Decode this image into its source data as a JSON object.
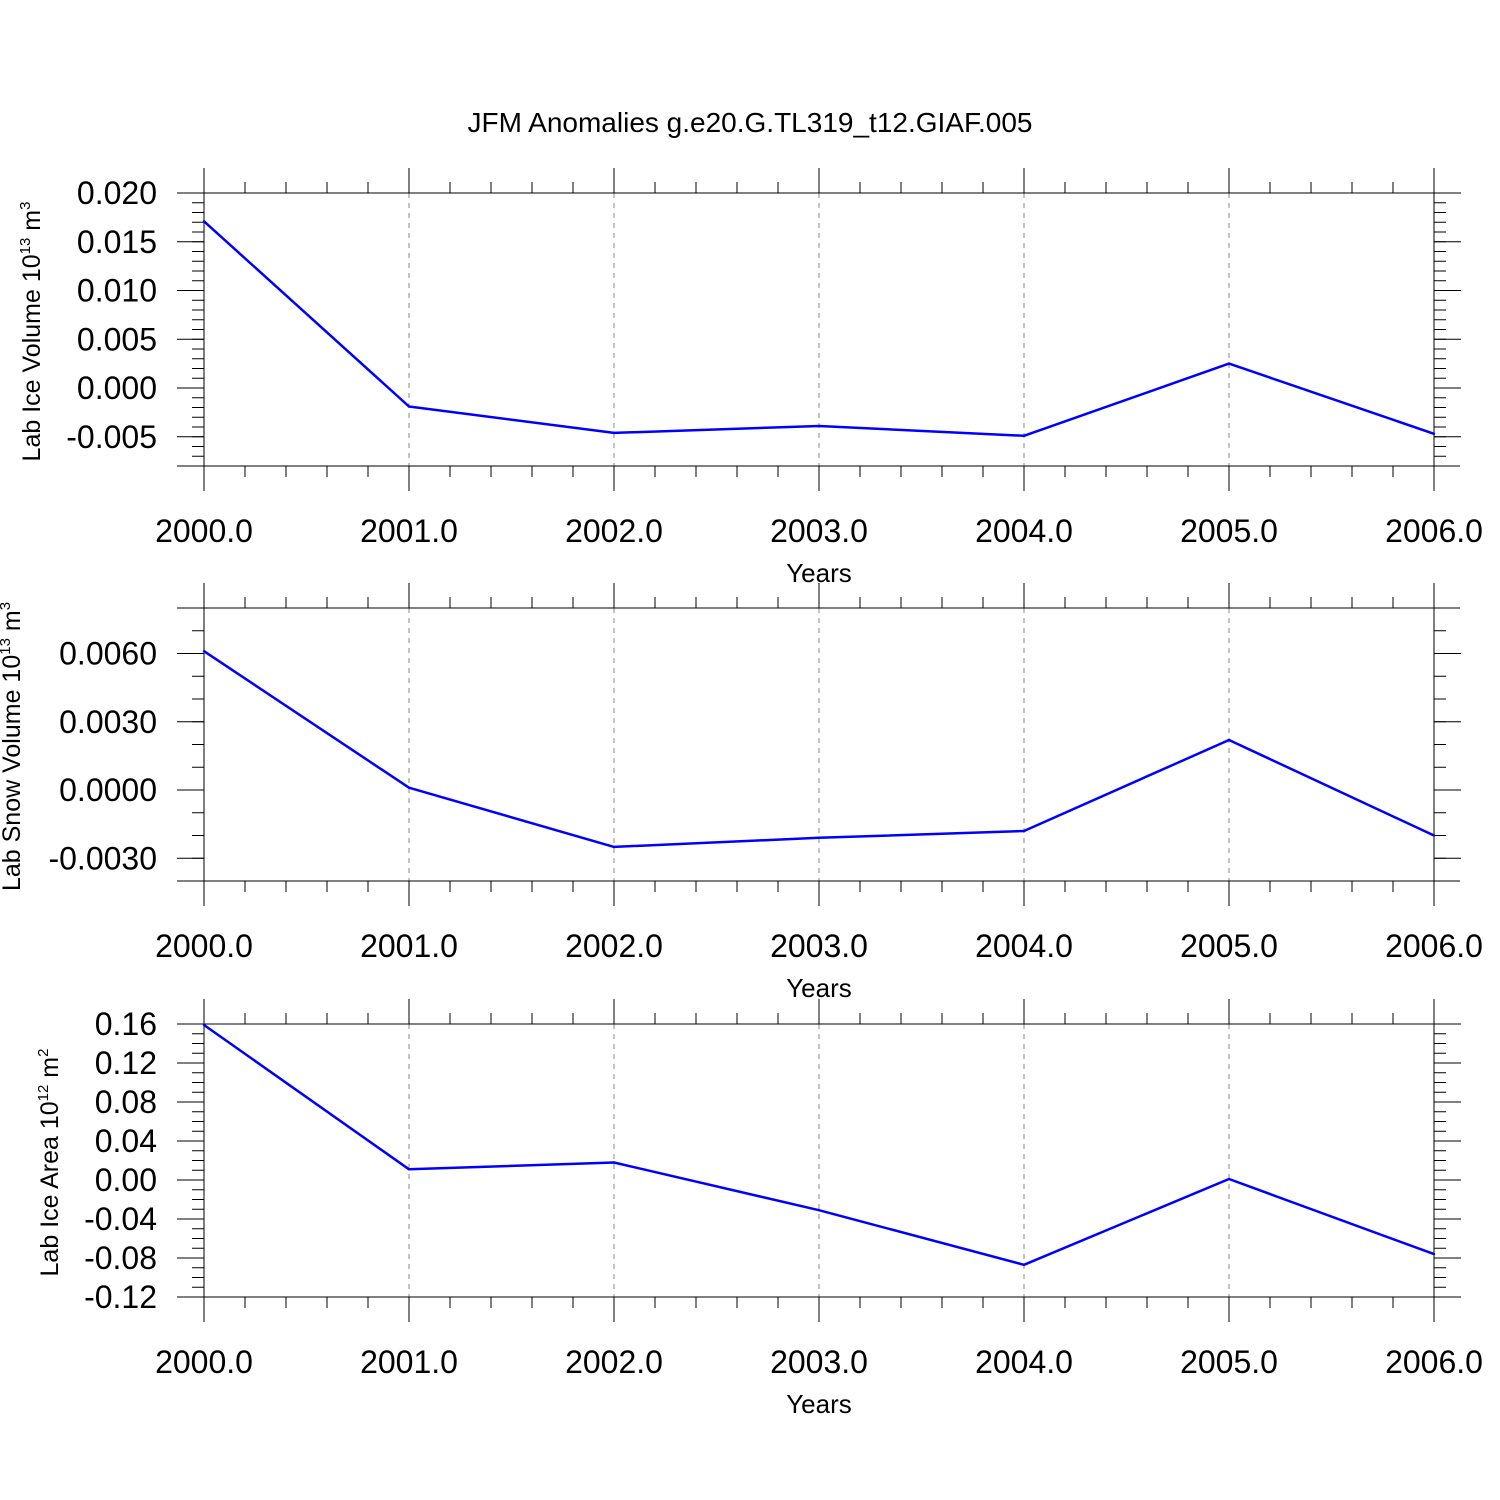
{
  "title": "JFM Anomalies g.e20.G.TL319_t12.GIAF.005",
  "line_color": "#0000ff",
  "chart_data": [
    {
      "type": "line",
      "xlabel": "Years",
      "ylabel": {
        "main": "Lab Ice Volume 10",
        "exp": "13",
        "unit": " m",
        "unit_exp": "3"
      },
      "x": [
        2000,
        2001,
        2002,
        2003,
        2004,
        2005,
        2006
      ],
      "xlim": [
        2000,
        2006
      ],
      "xticks": [
        "2000.0",
        "2001.0",
        "2002.0",
        "2003.0",
        "2004.0",
        "2005.0",
        "2006.0"
      ],
      "values": [
        0.0171,
        -0.0019,
        -0.0046,
        -0.0039,
        -0.0049,
        0.0025,
        -0.0047
      ],
      "ylim": [
        -0.008,
        0.02
      ],
      "yticks": [
        {
          "value": 0.02,
          "label": "0.020"
        },
        {
          "value": 0.015,
          "label": "0.015"
        },
        {
          "value": 0.01,
          "label": "0.010"
        },
        {
          "value": 0.005,
          "label": "0.005"
        },
        {
          "value": 0.0,
          "label": "0.000"
        },
        {
          "value": -0.005,
          "label": "-0.005"
        }
      ],
      "yminor_step": 0.001,
      "grid": "x-dashed"
    },
    {
      "type": "line",
      "xlabel": "Years",
      "ylabel": {
        "main": "Lab Snow Volume 10",
        "exp": "13",
        "unit": " m",
        "unit_exp": "3"
      },
      "x": [
        2000,
        2001,
        2002,
        2003,
        2004,
        2005,
        2006
      ],
      "xlim": [
        2000,
        2006
      ],
      "xticks": [
        "2000.0",
        "2001.0",
        "2002.0",
        "2003.0",
        "2004.0",
        "2005.0",
        "2006.0"
      ],
      "values": [
        0.0061,
        0.0001,
        -0.0025,
        -0.0021,
        -0.0018,
        0.0022,
        -0.002
      ],
      "ylim": [
        -0.004,
        0.008
      ],
      "yticks": [
        {
          "value": 0.006,
          "label": "0.0060"
        },
        {
          "value": 0.003,
          "label": "0.0030"
        },
        {
          "value": 0.0,
          "label": "0.0000"
        },
        {
          "value": -0.003,
          "label": "-0.0030"
        }
      ],
      "yminor_step": 0.001,
      "grid": "x-dashed"
    },
    {
      "type": "line",
      "xlabel": "Years",
      "ylabel": {
        "main": "Lab Ice Area 10",
        "exp": "12",
        "unit": " m",
        "unit_exp": "2"
      },
      "x": [
        2000,
        2001,
        2002,
        2003,
        2004,
        2005,
        2006
      ],
      "xlim": [
        2000,
        2006
      ],
      "xticks": [
        "2000.0",
        "2001.0",
        "2002.0",
        "2003.0",
        "2004.0",
        "2005.0",
        "2006.0"
      ],
      "values": [
        0.159,
        0.011,
        0.018,
        -0.031,
        -0.087,
        0.001,
        -0.076
      ],
      "ylim": [
        -0.12,
        0.16
      ],
      "yticks": [
        {
          "value": 0.16,
          "label": "0.16"
        },
        {
          "value": 0.12,
          "label": "0.12"
        },
        {
          "value": 0.08,
          "label": "0.08"
        },
        {
          "value": 0.04,
          "label": "0.04"
        },
        {
          "value": 0.0,
          "label": "0.00"
        },
        {
          "value": -0.04,
          "label": "-0.04"
        },
        {
          "value": -0.08,
          "label": "-0.08"
        },
        {
          "value": -0.12,
          "label": "-0.12"
        }
      ],
      "yminor_step": 0.01,
      "grid": "x-dashed"
    }
  ]
}
